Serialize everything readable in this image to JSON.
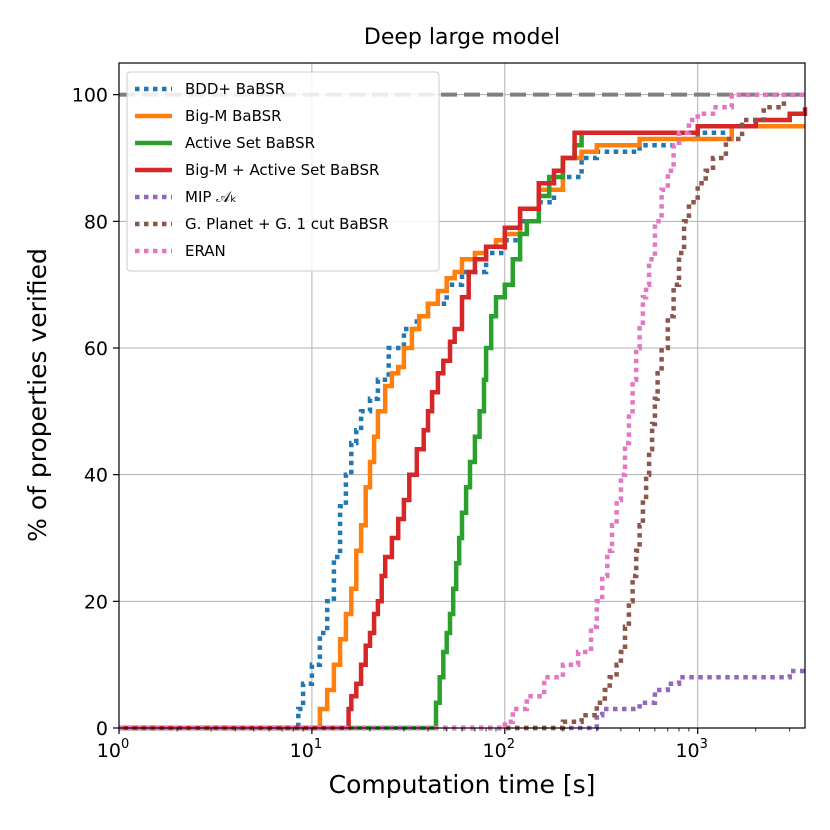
{
  "chart_data": {
    "type": "line",
    "title": "Deep large model",
    "xlabel": "Computation time [s]",
    "ylabel": "% of properties verified",
    "xscale": "log",
    "xlim": [
      1,
      3600
    ],
    "ylim": [
      0,
      105
    ],
    "grid": true,
    "legend_position": "top-left",
    "x_ticks": [
      {
        "value": 1,
        "base": "10",
        "exp": "0"
      },
      {
        "value": 10,
        "base": "10",
        "exp": "1"
      },
      {
        "value": 100,
        "base": "10",
        "exp": "2"
      },
      {
        "value": 1000,
        "base": "10",
        "exp": "3"
      }
    ],
    "y_ticks": [
      {
        "value": 0,
        "label": "0"
      },
      {
        "value": 20,
        "label": "20"
      },
      {
        "value": 40,
        "label": "40"
      },
      {
        "value": 60,
        "label": "60"
      },
      {
        "value": 80,
        "label": "80"
      },
      {
        "value": 100,
        "label": "100"
      }
    ],
    "reference_line": {
      "y": 100,
      "color": "#808080",
      "style": "dashed"
    },
    "series": [
      {
        "name": "BDD+ BaBSR",
        "color": "#1f77b4",
        "style": "dotted",
        "points": [
          [
            1,
            0
          ],
          [
            8.2,
            0
          ],
          [
            8.5,
            3
          ],
          [
            9,
            7
          ],
          [
            10,
            10
          ],
          [
            11,
            15
          ],
          [
            12,
            20
          ],
          [
            13,
            27
          ],
          [
            14,
            35
          ],
          [
            15,
            40
          ],
          [
            16,
            45
          ],
          [
            17,
            47
          ],
          [
            18,
            50
          ],
          [
            20,
            52
          ],
          [
            22,
            55
          ],
          [
            25,
            60
          ],
          [
            30,
            63
          ],
          [
            35,
            65
          ],
          [
            40,
            67
          ],
          [
            50,
            70
          ],
          [
            60,
            72
          ],
          [
            80,
            75
          ],
          [
            100,
            77
          ],
          [
            120,
            80
          ],
          [
            150,
            83
          ],
          [
            180,
            85
          ],
          [
            200,
            87
          ],
          [
            250,
            90
          ],
          [
            300,
            91
          ],
          [
            500,
            92
          ],
          [
            800,
            93
          ],
          [
            1000,
            94
          ],
          [
            1500,
            95
          ],
          [
            3600,
            95
          ]
        ]
      },
      {
        "name": "Big-M BaBSR",
        "color": "#ff7f0e",
        "style": "solid",
        "points": [
          [
            1,
            0
          ],
          [
            10,
            0
          ],
          [
            11,
            3
          ],
          [
            12,
            6
          ],
          [
            13,
            10
          ],
          [
            14,
            14
          ],
          [
            15,
            18
          ],
          [
            16,
            22
          ],
          [
            17,
            28
          ],
          [
            18,
            32
          ],
          [
            19,
            38
          ],
          [
            20,
            42
          ],
          [
            21,
            46
          ],
          [
            22,
            50
          ],
          [
            24,
            54
          ],
          [
            26,
            56
          ],
          [
            28,
            57
          ],
          [
            30,
            60
          ],
          [
            33,
            63
          ],
          [
            36,
            65
          ],
          [
            40,
            67
          ],
          [
            45,
            69
          ],
          [
            50,
            71
          ],
          [
            55,
            72
          ],
          [
            60,
            74
          ],
          [
            70,
            75
          ],
          [
            80,
            76
          ],
          [
            90,
            77
          ],
          [
            100,
            78
          ],
          [
            120,
            82
          ],
          [
            150,
            85
          ],
          [
            200,
            90
          ],
          [
            250,
            91
          ],
          [
            300,
            92
          ],
          [
            400,
            92
          ],
          [
            500,
            93
          ],
          [
            1000,
            93
          ],
          [
            1500,
            95
          ],
          [
            3600,
            95
          ]
        ]
      },
      {
        "name": "Active Set BaBSR",
        "color": "#2ca02c",
        "style": "solid",
        "points": [
          [
            1,
            0
          ],
          [
            42,
            0
          ],
          [
            44,
            4
          ],
          [
            46,
            8
          ],
          [
            48,
            12
          ],
          [
            50,
            15
          ],
          [
            52,
            18
          ],
          [
            54,
            22
          ],
          [
            56,
            26
          ],
          [
            58,
            30
          ],
          [
            60,
            34
          ],
          [
            63,
            38
          ],
          [
            66,
            42
          ],
          [
            70,
            46
          ],
          [
            74,
            50
          ],
          [
            78,
            55
          ],
          [
            80,
            60
          ],
          [
            85,
            65
          ],
          [
            90,
            68
          ],
          [
            100,
            70
          ],
          [
            110,
            74
          ],
          [
            120,
            78
          ],
          [
            130,
            80
          ],
          [
            150,
            84
          ],
          [
            170,
            87
          ],
          [
            200,
            90
          ],
          [
            230,
            92
          ],
          [
            250,
            94
          ],
          [
            400,
            94
          ]
        ]
      },
      {
        "name": "Big-M + Active Set BaBSR",
        "color": "#d62728",
        "style": "solid",
        "points": [
          [
            1,
            0
          ],
          [
            15,
            0
          ],
          [
            15.5,
            3
          ],
          [
            16,
            5
          ],
          [
            17,
            7
          ],
          [
            18,
            10
          ],
          [
            19,
            13
          ],
          [
            20,
            15
          ],
          [
            21,
            18
          ],
          [
            22,
            20
          ],
          [
            23,
            24
          ],
          [
            24,
            27
          ],
          [
            26,
            30
          ],
          [
            28,
            33
          ],
          [
            30,
            36
          ],
          [
            32,
            40
          ],
          [
            35,
            44
          ],
          [
            38,
            47
          ],
          [
            40,
            50
          ],
          [
            42,
            53
          ],
          [
            45,
            56
          ],
          [
            48,
            58
          ],
          [
            52,
            61
          ],
          [
            55,
            63
          ],
          [
            60,
            68
          ],
          [
            65,
            72
          ],
          [
            70,
            74
          ],
          [
            80,
            76
          ],
          [
            100,
            79
          ],
          [
            120,
            82
          ],
          [
            150,
            86
          ],
          [
            180,
            88
          ],
          [
            200,
            90
          ],
          [
            230,
            94
          ],
          [
            300,
            94
          ],
          [
            1000,
            95
          ],
          [
            2000,
            96
          ],
          [
            3000,
            97
          ],
          [
            3600,
            98
          ]
        ]
      },
      {
        "name": "MIP 𝒜ₖ",
        "color": "#9467bd",
        "style": "dotted",
        "points": [
          [
            1,
            0
          ],
          [
            280,
            0
          ],
          [
            300,
            2
          ],
          [
            320,
            3
          ],
          [
            400,
            3
          ],
          [
            500,
            4
          ],
          [
            600,
            6
          ],
          [
            700,
            7
          ],
          [
            800,
            8
          ],
          [
            1000,
            8
          ],
          [
            2000,
            8
          ],
          [
            3000,
            9
          ],
          [
            3600,
            9
          ]
        ]
      },
      {
        "name": "G. Planet + G. 1 cut BaBSR",
        "color": "#8c564b",
        "style": "dotted",
        "points": [
          [
            1,
            0
          ],
          [
            150,
            0
          ],
          [
            200,
            1
          ],
          [
            250,
            2
          ],
          [
            300,
            4
          ],
          [
            330,
            6
          ],
          [
            350,
            8
          ],
          [
            380,
            10
          ],
          [
            400,
            12
          ],
          [
            420,
            16
          ],
          [
            440,
            20
          ],
          [
            460,
            24
          ],
          [
            480,
            28
          ],
          [
            500,
            32
          ],
          [
            520,
            36
          ],
          [
            540,
            40
          ],
          [
            560,
            44
          ],
          [
            580,
            48
          ],
          [
            600,
            52
          ],
          [
            620,
            56
          ],
          [
            650,
            60
          ],
          [
            700,
            65
          ],
          [
            750,
            70
          ],
          [
            800,
            75
          ],
          [
            850,
            80
          ],
          [
            900,
            83
          ],
          [
            1000,
            86
          ],
          [
            1100,
            88
          ],
          [
            1200,
            90
          ],
          [
            1400,
            93
          ],
          [
            1700,
            96
          ],
          [
            2200,
            98
          ],
          [
            2800,
            100
          ],
          [
            3600,
            100
          ]
        ]
      },
      {
        "name": "ERAN",
        "color": "#e377c2",
        "style": "dotted",
        "points": [
          [
            1,
            0
          ],
          [
            90,
            0
          ],
          [
            100,
            1
          ],
          [
            110,
            3
          ],
          [
            130,
            5
          ],
          [
            160,
            8
          ],
          [
            200,
            10
          ],
          [
            240,
            12
          ],
          [
            280,
            16
          ],
          [
            300,
            20
          ],
          [
            320,
            24
          ],
          [
            340,
            28
          ],
          [
            360,
            32
          ],
          [
            380,
            36
          ],
          [
            400,
            40
          ],
          [
            420,
            45
          ],
          [
            440,
            50
          ],
          [
            460,
            55
          ],
          [
            480,
            60
          ],
          [
            500,
            64
          ],
          [
            520,
            68
          ],
          [
            540,
            70
          ],
          [
            560,
            74
          ],
          [
            600,
            80
          ],
          [
            650,
            85
          ],
          [
            700,
            88
          ],
          [
            750,
            92
          ],
          [
            800,
            94
          ],
          [
            900,
            96
          ],
          [
            1000,
            97
          ],
          [
            1200,
            98
          ],
          [
            1500,
            100
          ],
          [
            3600,
            100
          ]
        ]
      }
    ]
  }
}
